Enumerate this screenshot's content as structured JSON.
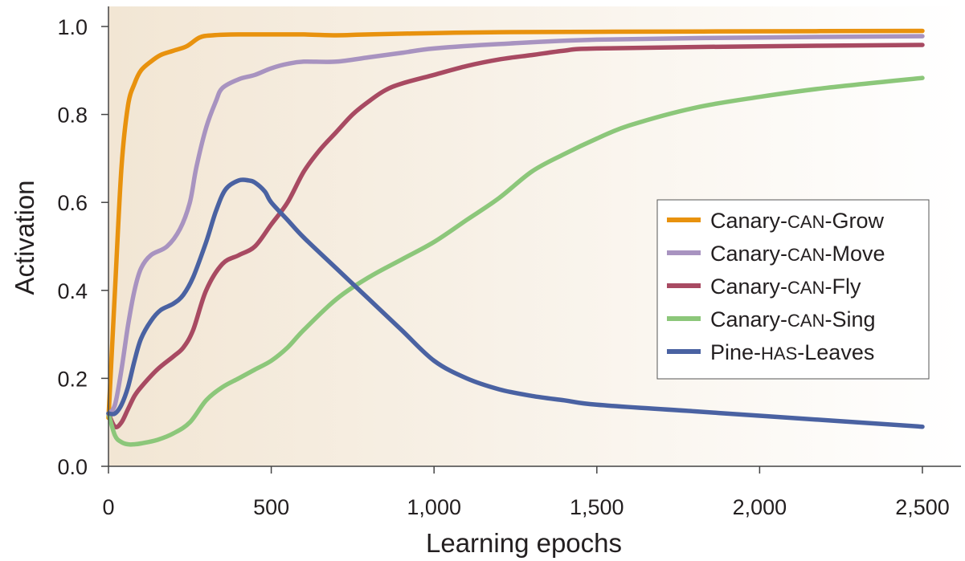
{
  "chart_data": {
    "type": "line",
    "title": "",
    "xlabel": "Learning epochs",
    "ylabel": "Activation",
    "xlim": [
      0,
      2500
    ],
    "ylim": [
      0,
      1.0
    ],
    "x_ticks": [
      0,
      500,
      1000,
      1500,
      2000,
      2500
    ],
    "x_tick_labels": [
      "0",
      "500",
      "1,000",
      "1,500",
      "2,000",
      "2,500"
    ],
    "y_ticks": [
      0,
      0.2,
      0.4,
      0.6,
      0.8,
      1.0
    ],
    "y_tick_labels": [
      "0.0",
      "0.2",
      "0.4",
      "0.6",
      "0.8",
      "1.0"
    ],
    "grid": false,
    "legend_position": "center-right",
    "background_gradient": [
      "#f2e6d4",
      "#ffffff"
    ],
    "series": [
      {
        "name": "Canary-CAN-Grow",
        "legend_parts": [
          [
            "Canary-",
            false
          ],
          [
            "CAN",
            true
          ],
          [
            "-Grow",
            false
          ]
        ],
        "color": "#e8920e",
        "x": [
          0,
          20,
          40,
          60,
          80,
          100,
          130,
          160,
          200,
          240,
          280,
          320,
          400,
          500,
          600,
          700,
          800,
          1000,
          1200,
          1500,
          2000,
          2500
        ],
        "y": [
          0.11,
          0.4,
          0.68,
          0.82,
          0.87,
          0.9,
          0.92,
          0.935,
          0.945,
          0.955,
          0.975,
          0.98,
          0.982,
          0.982,
          0.982,
          0.98,
          0.982,
          0.985,
          0.987,
          0.988,
          0.989,
          0.99
        ]
      },
      {
        "name": "Canary-CAN-Move",
        "legend_parts": [
          [
            "Canary-",
            false
          ],
          [
            "CAN",
            true
          ],
          [
            "-Move",
            false
          ]
        ],
        "color": "#a893c0",
        "x": [
          0,
          20,
          40,
          60,
          80,
          100,
          130,
          180,
          220,
          250,
          270,
          300,
          330,
          350,
          400,
          450,
          500,
          550,
          600,
          700,
          800,
          900,
          1000,
          1200,
          1500,
          2000,
          2500
        ],
        "y": [
          0.12,
          0.14,
          0.22,
          0.32,
          0.4,
          0.45,
          0.48,
          0.5,
          0.54,
          0.6,
          0.68,
          0.77,
          0.83,
          0.86,
          0.88,
          0.89,
          0.905,
          0.915,
          0.92,
          0.92,
          0.93,
          0.94,
          0.95,
          0.96,
          0.97,
          0.975,
          0.978
        ]
      },
      {
        "name": "Canary-CAN-Fly",
        "legend_parts": [
          [
            "Canary-",
            false
          ],
          [
            "CAN",
            true
          ],
          [
            "-Fly",
            false
          ]
        ],
        "color": "#a84a62",
        "x": [
          0,
          20,
          40,
          60,
          80,
          100,
          150,
          200,
          230,
          260,
          300,
          350,
          400,
          450,
          500,
          550,
          600,
          650,
          700,
          750,
          800,
          850,
          900,
          1000,
          1100,
          1200,
          1300,
          1400,
          1500,
          2000,
          2500
        ],
        "y": [
          0.12,
          0.09,
          0.1,
          0.13,
          0.16,
          0.18,
          0.22,
          0.25,
          0.27,
          0.31,
          0.4,
          0.46,
          0.48,
          0.5,
          0.55,
          0.6,
          0.67,
          0.72,
          0.76,
          0.8,
          0.83,
          0.855,
          0.87,
          0.89,
          0.91,
          0.925,
          0.935,
          0.945,
          0.95,
          0.955,
          0.958
        ]
      },
      {
        "name": "Canary-CAN-Sing",
        "legend_parts": [
          [
            "Canary-",
            false
          ],
          [
            "CAN",
            true
          ],
          [
            "-Sing",
            false
          ]
        ],
        "color": "#8cc77a",
        "x": [
          0,
          20,
          40,
          60,
          80,
          100,
          150,
          200,
          250,
          300,
          350,
          400,
          450,
          500,
          550,
          600,
          700,
          800,
          900,
          1000,
          1100,
          1200,
          1300,
          1400,
          1500,
          1600,
          1800,
          2000,
          2200,
          2500
        ],
        "y": [
          0.12,
          0.07,
          0.055,
          0.05,
          0.05,
          0.052,
          0.06,
          0.075,
          0.1,
          0.15,
          0.18,
          0.2,
          0.22,
          0.24,
          0.27,
          0.31,
          0.38,
          0.43,
          0.47,
          0.51,
          0.56,
          0.61,
          0.67,
          0.71,
          0.745,
          0.775,
          0.815,
          0.84,
          0.86,
          0.883
        ]
      },
      {
        "name": "Pine-HAS-Leaves",
        "legend_parts": [
          [
            "Pine-",
            false
          ],
          [
            "HAS",
            true
          ],
          [
            "-Leaves",
            false
          ]
        ],
        "color": "#4a62a2",
        "x": [
          0,
          20,
          40,
          60,
          80,
          100,
          130,
          160,
          200,
          230,
          260,
          300,
          330,
          360,
          400,
          430,
          450,
          480,
          500,
          550,
          600,
          700,
          800,
          900,
          1000,
          1100,
          1200,
          1300,
          1400,
          1500,
          1800,
          2000,
          2500
        ],
        "y": [
          0.12,
          0.12,
          0.14,
          0.18,
          0.24,
          0.29,
          0.33,
          0.355,
          0.37,
          0.39,
          0.43,
          0.51,
          0.58,
          0.63,
          0.65,
          0.65,
          0.645,
          0.625,
          0.6,
          0.56,
          0.52,
          0.45,
          0.38,
          0.31,
          0.24,
          0.2,
          0.175,
          0.16,
          0.15,
          0.14,
          0.125,
          0.115,
          0.09
        ]
      }
    ]
  }
}
